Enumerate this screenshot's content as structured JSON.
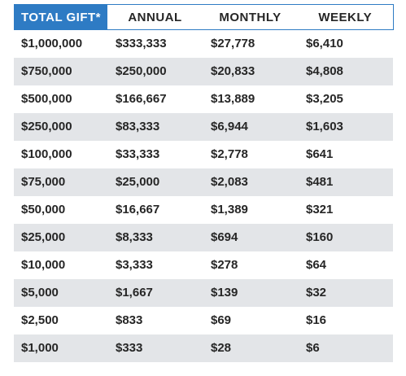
{
  "table": {
    "headers": [
      "TOTAL GIFT*",
      "ANNUAL",
      "MONTHLY",
      "WEEKLY"
    ],
    "rows": [
      [
        "$1,000,000",
        "$333,333",
        "$27,778",
        "$6,410"
      ],
      [
        "$750,000",
        "$250,000",
        "$20,833",
        "$4,808"
      ],
      [
        "$500,000",
        "$166,667",
        "$13,889",
        "$3,205"
      ],
      [
        "$250,000",
        "$83,333",
        "$6,944",
        "$1,603"
      ],
      [
        "$100,000",
        "$33,333",
        "$2,778",
        "$641"
      ],
      [
        "$75,000",
        "$25,000",
        "$2,083",
        "$481"
      ],
      [
        "$50,000",
        "$16,667",
        "$1,389",
        "$321"
      ],
      [
        "$25,000",
        "$8,333",
        "$694",
        "$160"
      ],
      [
        "$10,000",
        "$3,333",
        "$278",
        "$64"
      ],
      [
        "$5,000",
        "$1,667",
        "$139",
        "$32"
      ],
      [
        "$2,500",
        "$833",
        "$69",
        "$16"
      ],
      [
        "$1,000",
        "$333",
        "$28",
        "$6"
      ]
    ]
  },
  "colors": {
    "header_accent": "#2e7bc4",
    "stripe": "#e3e5e8",
    "text": "#262626"
  }
}
